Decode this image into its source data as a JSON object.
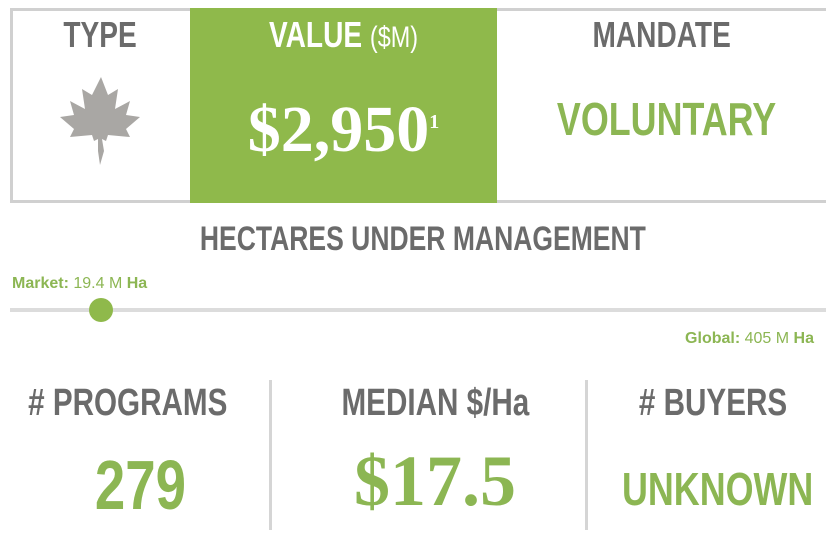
{
  "header": {
    "type_label": "TYPE",
    "value_label": "VALUE",
    "value_unit": "($M)",
    "value": "$2,950",
    "value_note": "1",
    "mandate_label": "MANDATE",
    "mandate": "VOLUNTARY"
  },
  "hectares": {
    "title": "HECTARES UNDER MANAGEMENT",
    "market": {
      "label": "Market:",
      "value": "19.4",
      "unit": "M",
      "suffix": "Ha"
    },
    "global": {
      "label": "Global:",
      "value": "405",
      "unit": "M",
      "suffix": "Ha"
    }
  },
  "stats": [
    {
      "label": "# PROGRAMS",
      "value": "279"
    },
    {
      "label": "MEDIAN $/Ha",
      "value": "$17.5"
    },
    {
      "label": "# BUYERS",
      "value": "UNKNOWN"
    }
  ]
}
